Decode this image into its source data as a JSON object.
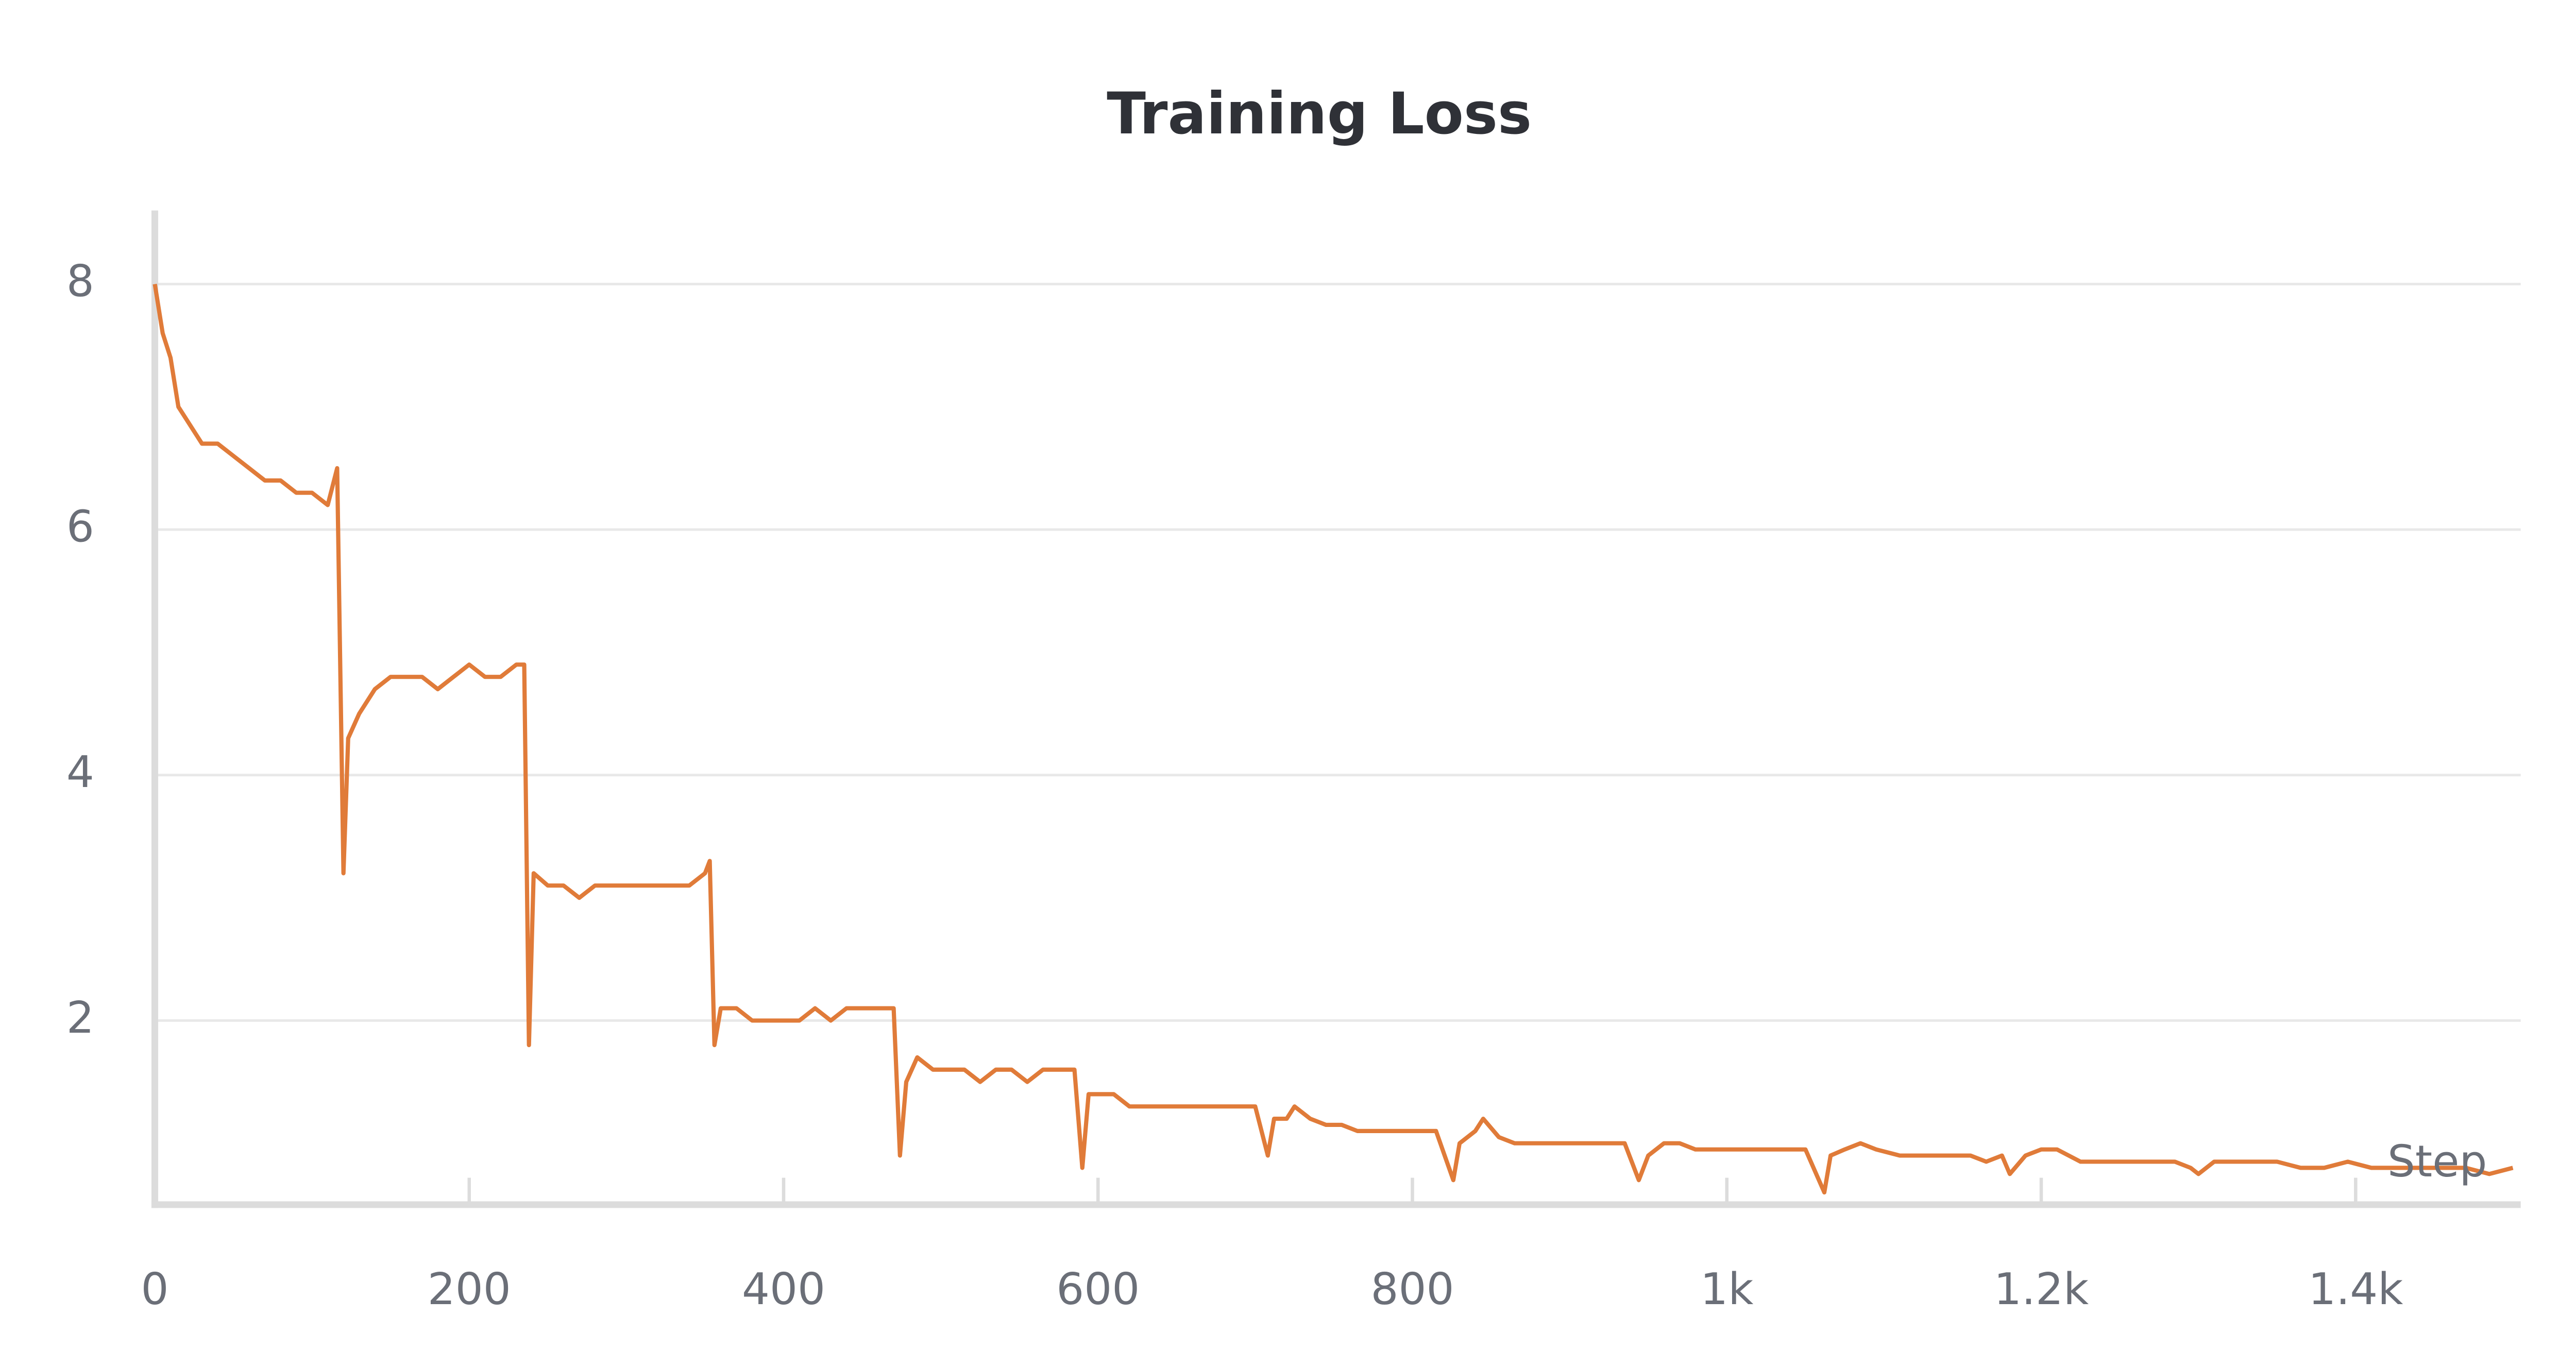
{
  "chart_data": {
    "type": "line",
    "title": "Training Loss",
    "x_label": "Step",
    "color": "#e07b39",
    "grid": true,
    "xlim": [
      0,
      1505
    ],
    "ylim": [
      0.5,
      8.6
    ],
    "xticks": [
      0,
      200,
      400,
      600,
      800,
      {
        "value": 1000,
        "label": "1k"
      },
      {
        "value": 1200,
        "label": "1.2k"
      },
      {
        "value": 1400,
        "label": "1.4k"
      }
    ],
    "yticks": [
      2,
      4,
      6,
      8
    ],
    "x": [
      0,
      5,
      10,
      15,
      20,
      30,
      40,
      50,
      60,
      70,
      80,
      90,
      100,
      110,
      116,
      120,
      123,
      130,
      140,
      150,
      160,
      170,
      180,
      190,
      200,
      210,
      220,
      230,
      235,
      238,
      241,
      250,
      260,
      270,
      280,
      290,
      300,
      310,
      320,
      330,
      340,
      350,
      353,
      356,
      360,
      370,
      380,
      390,
      400,
      410,
      420,
      430,
      440,
      450,
      460,
      470,
      474,
      478,
      485,
      495,
      505,
      515,
      525,
      535,
      545,
      555,
      565,
      575,
      585,
      590,
      594,
      600,
      610,
      620,
      630,
      640,
      650,
      660,
      670,
      680,
      690,
      700,
      708,
      712,
      720,
      725,
      735,
      745,
      755,
      765,
      775,
      785,
      795,
      805,
      815,
      826,
      830,
      840,
      845,
      855,
      865,
      875,
      885,
      895,
      905,
      915,
      925,
      935,
      944,
      950,
      960,
      970,
      980,
      990,
      1000,
      1010,
      1020,
      1030,
      1040,
      1050,
      1062,
      1066,
      1075,
      1085,
      1095,
      1110,
      1125,
      1140,
      1155,
      1165,
      1175,
      1180,
      1190,
      1200,
      1210,
      1225,
      1240,
      1255,
      1270,
      1285,
      1295,
      1300,
      1310,
      1320,
      1335,
      1350,
      1365,
      1380,
      1395,
      1410,
      1425,
      1440,
      1455,
      1470,
      1485,
      1500
    ],
    "values": [
      8.0,
      7.6,
      7.4,
      7.0,
      6.9,
      6.7,
      6.7,
      6.6,
      6.5,
      6.4,
      6.4,
      6.3,
      6.3,
      6.2,
      6.5,
      3.2,
      4.3,
      4.5,
      4.7,
      4.8,
      4.8,
      4.8,
      4.7,
      4.8,
      4.9,
      4.8,
      4.8,
      4.9,
      4.9,
      1.8,
      3.2,
      3.1,
      3.1,
      3.0,
      3.1,
      3.1,
      3.1,
      3.1,
      3.1,
      3.1,
      3.1,
      3.2,
      3.3,
      1.8,
      2.1,
      2.1,
      2.0,
      2.0,
      2.0,
      2.0,
      2.1,
      2.0,
      2.1,
      2.1,
      2.1,
      2.1,
      0.9,
      1.5,
      1.7,
      1.6,
      1.6,
      1.6,
      1.5,
      1.6,
      1.6,
      1.5,
      1.6,
      1.6,
      1.6,
      0.8,
      1.4,
      1.4,
      1.4,
      1.3,
      1.3,
      1.3,
      1.3,
      1.3,
      1.3,
      1.3,
      1.3,
      1.3,
      0.9,
      1.2,
      1.2,
      1.3,
      1.2,
      1.15,
      1.15,
      1.1,
      1.1,
      1.1,
      1.1,
      1.1,
      1.1,
      0.7,
      1.0,
      1.1,
      1.2,
      1.05,
      1.0,
      1.0,
      1.0,
      1.0,
      1.0,
      1.0,
      1.0,
      1.0,
      0.7,
      0.9,
      1.0,
      1.0,
      0.95,
      0.95,
      0.95,
      0.95,
      0.95,
      0.95,
      0.95,
      0.95,
      0.6,
      0.9,
      0.95,
      1.0,
      0.95,
      0.9,
      0.9,
      0.9,
      0.9,
      0.85,
      0.9,
      0.75,
      0.9,
      0.95,
      0.95,
      0.85,
      0.85,
      0.85,
      0.85,
      0.85,
      0.8,
      0.75,
      0.85,
      0.85,
      0.85,
      0.85,
      0.8,
      0.8,
      0.85,
      0.8,
      0.8,
      0.8,
      0.8,
      0.8,
      0.75,
      0.8
    ]
  }
}
